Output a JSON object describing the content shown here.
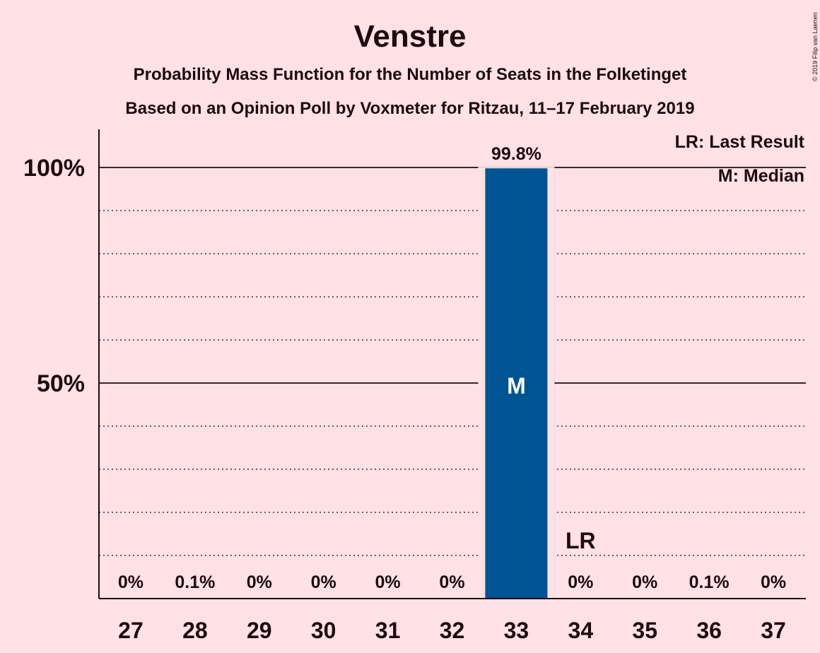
{
  "chart_data": {
    "type": "bar",
    "title": "Venstre",
    "subtitle": "Probability Mass Function for the Number of Seats in the Folketinget",
    "subtitle2": "Based on an Opinion Poll by Voxmeter for Ritzau, 11–17 February 2019",
    "copyright": "© 2019 Filip van Laenen",
    "categories": [
      "27",
      "28",
      "29",
      "30",
      "31",
      "32",
      "33",
      "34",
      "35",
      "36",
      "37"
    ],
    "values": [
      0,
      0.1,
      0,
      0,
      0,
      0,
      99.8,
      0,
      0,
      0.1,
      0
    ],
    "value_labels": [
      "0%",
      "0.1%",
      "0%",
      "0%",
      "0%",
      "0%",
      "99.8%",
      "0%",
      "0%",
      "0.1%",
      "0%"
    ],
    "ylim": [
      0,
      110
    ],
    "yticks": [
      {
        "value": 50,
        "label": "50%"
      },
      {
        "value": 100,
        "label": "100%"
      }
    ],
    "minor_gridlines": [
      10,
      20,
      30,
      40,
      60,
      70,
      80,
      90
    ],
    "median": {
      "category": "33",
      "label": "M"
    },
    "last_result": {
      "category": "34",
      "label": "LR",
      "value": 10
    },
    "legend": [
      "LR: Last Result",
      "M: Median"
    ],
    "legend_position": "top-right",
    "bar_color": "#005494",
    "background_color": "#FFE1E6",
    "text_color": "#1F0A0F"
  }
}
